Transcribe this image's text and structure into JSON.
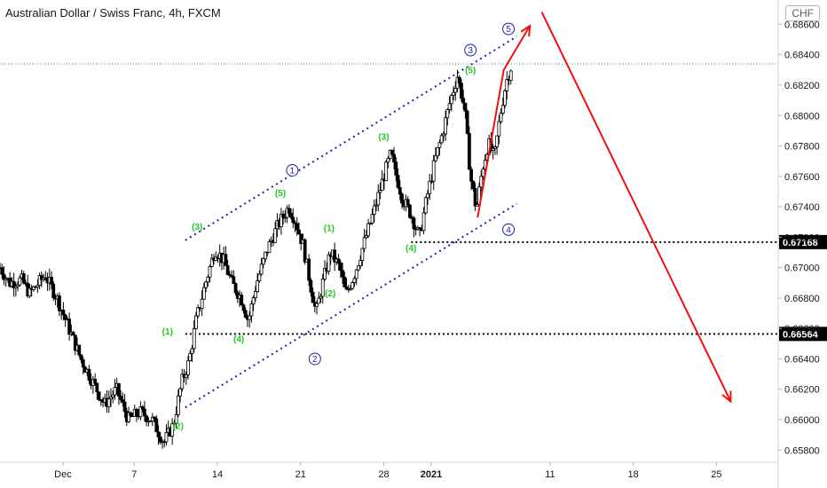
{
  "header": {
    "title": "Australian Dollar / Swiss Franc, 4h, FXCM",
    "currency": "CHF"
  },
  "chart_data": {
    "type": "candlestick",
    "title": "Australian Dollar / Swiss Franc, 4h, FXCM",
    "ylim": [
      0.6572,
      0.6876
    ],
    "y_ticks": [
      "0.65800",
      "0.66000",
      "0.66200",
      "0.66400",
      "0.66600",
      "0.66800",
      "0.67000",
      "0.67200",
      "0.67400",
      "0.67600",
      "0.67800",
      "0.68000",
      "0.68200",
      "0.68400",
      "0.68600"
    ],
    "x_ticks": [
      {
        "label": "Dec",
        "day": 0
      },
      {
        "label": "7",
        "day": 6
      },
      {
        "label": "14",
        "day": 13
      },
      {
        "label": "21",
        "day": 20
      },
      {
        "label": "28",
        "day": 27
      },
      {
        "label": "2021",
        "day": 31
      },
      {
        "label": "11",
        "day": 41
      },
      {
        "label": "18",
        "day": 48
      },
      {
        "label": "25",
        "day": 55
      }
    ],
    "xlim_days": [
      -5.3,
      60.2
    ],
    "last_price": 0.6834,
    "price_path": [
      [
        -5.3,
        0.67
      ],
      [
        -4.5,
        0.669
      ],
      [
        -3.5,
        0.6692
      ],
      [
        -2.8,
        0.6683
      ],
      [
        -1.5,
        0.6695
      ],
      [
        -0.5,
        0.668
      ],
      [
        0.5,
        0.666
      ],
      [
        1.5,
        0.664
      ],
      [
        2.5,
        0.6625
      ],
      [
        3.5,
        0.661
      ],
      [
        4.5,
        0.662
      ],
      [
        5.5,
        0.66
      ],
      [
        6.5,
        0.6605
      ],
      [
        7.5,
        0.66
      ],
      [
        8.5,
        0.6585
      ],
      [
        9.3,
        0.6597
      ],
      [
        10.0,
        0.6625
      ],
      [
        10.6,
        0.6638
      ],
      [
        11.2,
        0.6665
      ],
      [
        12.0,
        0.669
      ],
      [
        12.8,
        0.6712
      ],
      [
        13.5,
        0.6705
      ],
      [
        14.2,
        0.669
      ],
      [
        15.0,
        0.668
      ],
      [
        15.6,
        0.6665
      ],
      [
        16.3,
        0.669
      ],
      [
        17.2,
        0.6712
      ],
      [
        18.1,
        0.6728
      ],
      [
        19.0,
        0.674
      ],
      [
        19.5,
        0.6732
      ],
      [
        20.2,
        0.6715
      ],
      [
        20.8,
        0.669
      ],
      [
        21.3,
        0.667
      ],
      [
        21.8,
        0.6688
      ],
      [
        22.5,
        0.671
      ],
      [
        23.3,
        0.67
      ],
      [
        23.8,
        0.6682
      ],
      [
        24.5,
        0.6695
      ],
      [
        25.3,
        0.6715
      ],
      [
        26.2,
        0.6738
      ],
      [
        27.0,
        0.676
      ],
      [
        27.6,
        0.6775
      ],
      [
        28.0,
        0.6762
      ],
      [
        28.6,
        0.6745
      ],
      [
        29.3,
        0.6735
      ],
      [
        30.0,
        0.672
      ],
      [
        30.6,
        0.6745
      ],
      [
        31.3,
        0.677
      ],
      [
        32.0,
        0.679
      ],
      [
        32.6,
        0.681
      ],
      [
        33.2,
        0.6826
      ],
      [
        33.8,
        0.6805
      ],
      [
        34.3,
        0.676
      ],
      [
        34.8,
        0.6738
      ],
      [
        35.3,
        0.6765
      ],
      [
        35.8,
        0.6782
      ],
      [
        36.3,
        0.6772
      ],
      [
        36.8,
        0.68
      ],
      [
        37.3,
        0.6822
      ],
      [
        37.8,
        0.6834
      ]
    ],
    "horizontal_levels": [
      {
        "price": 0.6834,
        "label": "",
        "style": "dotted-thin"
      },
      {
        "price": 0.67168,
        "label": "0.67168",
        "style": "dotted-bold",
        "start_day": 29.3
      },
      {
        "price": 0.66564,
        "label": "0.66564",
        "style": "dotted-bold",
        "start_day": 10.3
      }
    ],
    "channel_lines": [
      {
        "from": [
          10.3,
          0.6718
        ],
        "to": [
          38.2,
          0.6852
        ]
      },
      {
        "from": [
          10.3,
          0.6608
        ],
        "to": [
          38.2,
          0.6742
        ]
      }
    ],
    "projection_arrows": [
      {
        "points": [
          [
            34.9,
            0.6733
          ],
          [
            37.1,
            0.683
          ],
          [
            39.3,
            0.6859
          ]
        ]
      },
      {
        "points": [
          [
            40.3,
            0.6868
          ],
          [
            56.2,
            0.6612
          ]
        ]
      }
    ],
    "wave_labels_minor": [
      {
        "text": "(1)",
        "day": 8.8,
        "price": 0.6656
      },
      {
        "text": "(2)",
        "day": 9.7,
        "price": 0.6594
      },
      {
        "text": "(3)",
        "day": 11.3,
        "price": 0.6725
      },
      {
        "text": "(4)",
        "day": 14.8,
        "price": 0.6651
      },
      {
        "text": "(5)",
        "day": 18.3,
        "price": 0.6747
      },
      {
        "text": "(1)",
        "day": 22.4,
        "price": 0.6724
      },
      {
        "text": "(2)",
        "day": 22.5,
        "price": 0.6681
      },
      {
        "text": "(3)",
        "day": 27.0,
        "price": 0.6784
      },
      {
        "text": "(4)",
        "day": 29.3,
        "price": 0.6711
      },
      {
        "text": "(5)",
        "day": 34.3,
        "price": 0.6828
      }
    ],
    "wave_labels_major": [
      {
        "text": "1",
        "day": 19.3,
        "price": 0.6764
      },
      {
        "text": "2",
        "day": 21.2,
        "price": 0.664
      },
      {
        "text": "3",
        "day": 34.3,
        "price": 0.6843
      },
      {
        "text": "4",
        "day": 37.5,
        "price": 0.6725
      },
      {
        "text": "5",
        "day": 37.5,
        "price": 0.6857
      }
    ],
    "colors": {
      "candle": "#000000",
      "channel": "#1f1fa8",
      "arrow": "#f01010",
      "wave_minor": "#22c922",
      "wave_major": "#1f1fa8",
      "level_line": "#000000"
    }
  }
}
